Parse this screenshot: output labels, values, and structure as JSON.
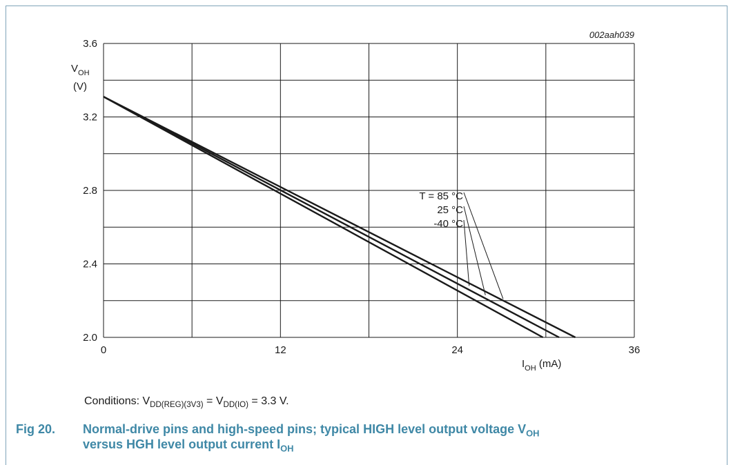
{
  "figure": {
    "code": "002aah039",
    "number": "Fig 20.",
    "title_line1": "Normal-drive pins and high-speed pins; typical HIGH level output voltage V",
    "title_line1_sub": "OH",
    "title_line2": "versus HGH level output current I",
    "title_line2_sub": "OH"
  },
  "conditions": {
    "prefix": "Conditions: V",
    "sub1": "DD(REG)(3V3)",
    "mid": " = V",
    "sub2": "DD(IO)",
    "suffix": " = 3.3 V."
  },
  "chart_data": {
    "type": "line",
    "x_label_main": "I",
    "x_label_sub": "OH",
    "x_label_unit": " (mA)",
    "y_label_main": "V",
    "y_label_sub": "OH",
    "y_label_unit": "(V)",
    "xlim": [
      0,
      36
    ],
    "ylim": [
      2.0,
      3.6
    ],
    "x_ticks": [
      0,
      12,
      24,
      36
    ],
    "y_ticks": [
      2.0,
      2.4,
      2.8,
      3.2,
      3.6
    ],
    "x_grid_step": 6,
    "y_grid_step": 0.2,
    "grid": true,
    "series": [
      {
        "name": "T = 85 °C",
        "x": [
          0,
          32.0
        ],
        "y": [
          3.31,
          2.0
        ]
      },
      {
        "name": "25 °C",
        "x": [
          0,
          30.9
        ],
        "y": [
          3.31,
          2.0
        ]
      },
      {
        "name": "-40 °C",
        "x": [
          0,
          29.8
        ],
        "y": [
          3.31,
          2.0
        ]
      }
    ],
    "annotations": [
      {
        "text": "T = 85 °C",
        "target": [
          27.1,
          2.21
        ]
      },
      {
        "text": "25 °C",
        "target": [
          25.9,
          2.23
        ]
      },
      {
        "text": "-40 °C",
        "target": [
          24.8,
          2.28
        ]
      }
    ]
  }
}
